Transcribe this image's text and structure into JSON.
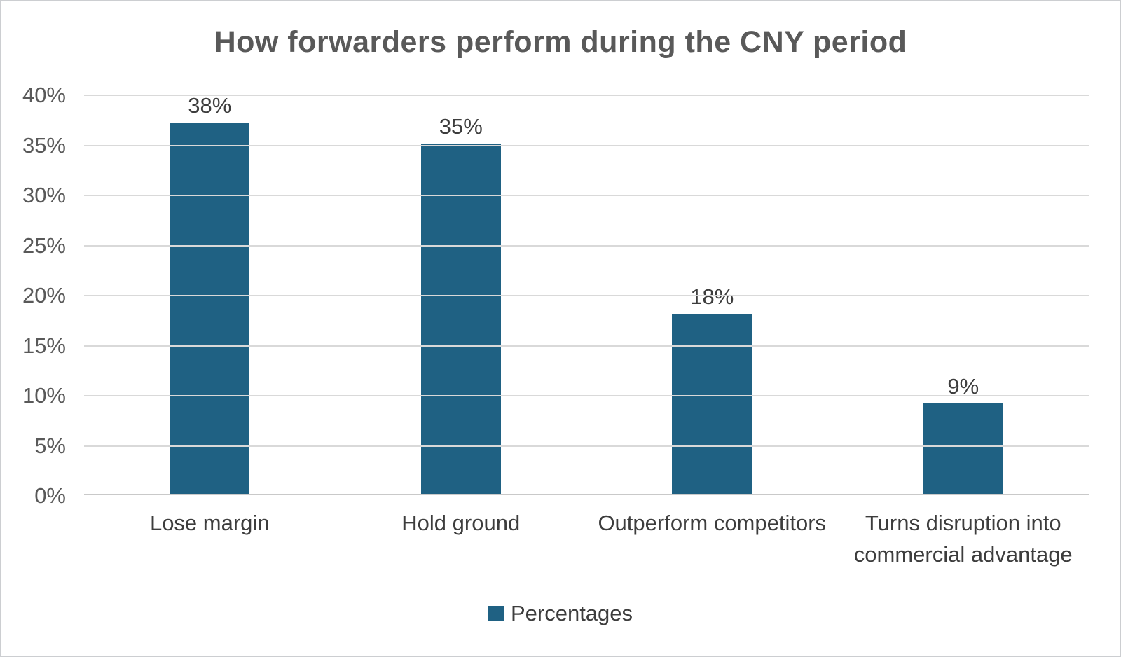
{
  "chart_data": {
    "type": "bar",
    "title": "How forwarders perform during the CNY period",
    "categories": [
      "Lose margin",
      "Hold ground",
      "Outperform competitors",
      "Turns disruption into commercial advantage"
    ],
    "series": [
      {
        "name": "Percentages",
        "values": [
          38,
          35,
          18,
          9
        ]
      }
    ],
    "data_labels": [
      "38%",
      "35%",
      "18%",
      "9%"
    ],
    "xlabel": "",
    "ylabel": "",
    "ylim": [
      0,
      40
    ],
    "ytick_step": 5,
    "ytick_labels": [
      "0%",
      "5%",
      "10%",
      "15%",
      "20%",
      "25%",
      "30%",
      "35%",
      "40%"
    ],
    "grid": true,
    "legend": {
      "position": "bottom",
      "entries": [
        "Percentages"
      ]
    },
    "colors": {
      "bar": "#1f6183",
      "gridline": "#d9d9d9",
      "axis_line": "#c9c9c9",
      "title_text": "#595959",
      "tick_text": "#595959",
      "label_text": "#3d3d3d",
      "frame_border": "#ccced1"
    }
  }
}
